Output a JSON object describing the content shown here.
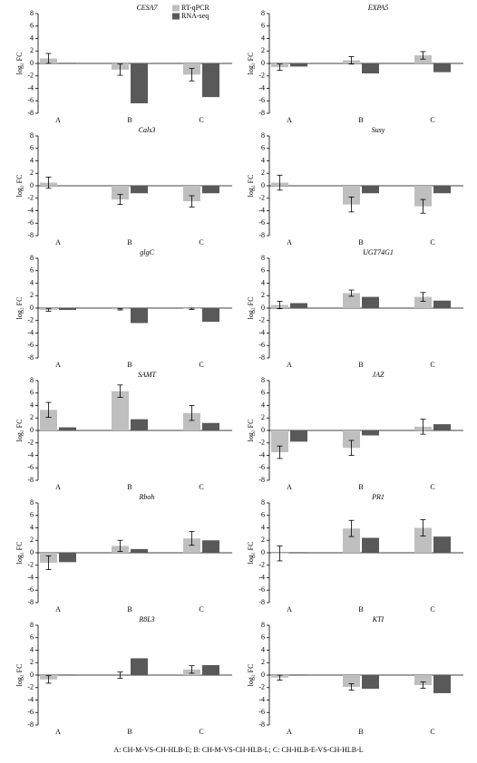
{
  "chart_data": [
    {
      "type": "bar",
      "title": "CESA7",
      "y_label": "log₂ FC",
      "categories": [
        "A",
        "B",
        "C"
      ],
      "ylim": [
        -8,
        8
      ],
      "yticks": [
        -8,
        -6,
        -4,
        -2,
        0,
        2,
        4,
        6,
        8
      ],
      "legend": true,
      "series": [
        {
          "name": "RT-qPCR",
          "color": "#bfbfbf",
          "values": [
            0.8,
            -1.0,
            -1.8
          ],
          "errors": [
            0.8,
            0.9,
            1.0
          ]
        },
        {
          "name": "RNA-seq",
          "color": "#595959",
          "values": [
            0.1,
            -6.4,
            -5.4
          ]
        }
      ]
    },
    {
      "type": "bar",
      "title": "EXPA5",
      "y_label": "log₂ FC",
      "categories": [
        "A",
        "B",
        "C"
      ],
      "ylim": [
        -8,
        8
      ],
      "yticks": [
        -8,
        -6,
        -4,
        -2,
        0,
        2,
        4,
        6,
        8
      ],
      "series": [
        {
          "color": "#bfbfbf",
          "values": [
            -0.6,
            0.5,
            1.3
          ],
          "errors": [
            0.5,
            0.6,
            0.6
          ]
        },
        {
          "color": "#595959",
          "values": [
            -0.5,
            -1.6,
            -1.4
          ]
        }
      ]
    },
    {
      "type": "bar",
      "title": "Cals3",
      "y_label": "log₂ FC",
      "categories": [
        "A",
        "B",
        "C"
      ],
      "ylim": [
        -8,
        8
      ],
      "yticks": [
        -8,
        -6,
        -4,
        -2,
        0,
        2,
        4,
        6,
        8
      ],
      "series": [
        {
          "color": "#bfbfbf",
          "values": [
            0.5,
            -2.2,
            -2.5
          ],
          "errors": [
            0.9,
            0.8,
            0.9
          ]
        },
        {
          "color": "#595959",
          "values": [
            0.0,
            -1.2,
            -1.2
          ]
        }
      ]
    },
    {
      "type": "bar",
      "title": "Susy",
      "y_label": "log₂ FC",
      "categories": [
        "A",
        "B",
        "C"
      ],
      "ylim": [
        -8,
        8
      ],
      "yticks": [
        -8,
        -6,
        -4,
        -2,
        0,
        2,
        4,
        6,
        8
      ],
      "series": [
        {
          "color": "#bfbfbf",
          "values": [
            0.5,
            -3.0,
            -3.3
          ],
          "errors": [
            1.2,
            1.2,
            1.1
          ]
        },
        {
          "color": "#595959",
          "values": [
            0.0,
            -1.2,
            -1.2
          ]
        }
      ]
    },
    {
      "type": "bar",
      "title": "glgC",
      "y_label": "log₂ FC",
      "categories": [
        "A",
        "B",
        "C"
      ],
      "ylim": [
        -8,
        8
      ],
      "yticks": [
        -8,
        -6,
        -4,
        -2,
        0,
        2,
        4,
        6,
        8
      ],
      "series": [
        {
          "color": "#bfbfbf",
          "values": [
            -0.3,
            -0.2,
            -0.1
          ],
          "errors": [
            0.2,
            0.1,
            0.1
          ]
        },
        {
          "color": "#595959",
          "values": [
            -0.3,
            -2.4,
            -2.2
          ]
        }
      ]
    },
    {
      "type": "bar",
      "title": "UGT74G1",
      "y_label": "log₂ FC",
      "categories": [
        "A",
        "B",
        "C"
      ],
      "ylim": [
        -8,
        8
      ],
      "yticks": [
        -8,
        -6,
        -4,
        -2,
        0,
        2,
        4,
        6,
        8
      ],
      "series": [
        {
          "color": "#bfbfbf",
          "values": [
            0.5,
            2.4,
            1.8
          ],
          "errors": [
            0.6,
            0.5,
            0.7
          ]
        },
        {
          "color": "#595959",
          "values": [
            0.8,
            1.8,
            1.2
          ]
        }
      ]
    },
    {
      "type": "bar",
      "title": "SAMT",
      "y_label": "log₂ FC",
      "categories": [
        "A",
        "B",
        "C"
      ],
      "ylim": [
        -8,
        8
      ],
      "yticks": [
        -8,
        -6,
        -4,
        -2,
        0,
        2,
        4,
        6,
        8
      ],
      "series": [
        {
          "color": "#bfbfbf",
          "values": [
            3.3,
            6.3,
            2.8
          ],
          "errors": [
            1.2,
            1.0,
            1.2
          ]
        },
        {
          "color": "#595959",
          "values": [
            0.5,
            1.8,
            1.2
          ]
        }
      ]
    },
    {
      "type": "bar",
      "title": "JAZ",
      "y_label": "log₂ FC",
      "categories": [
        "A",
        "B",
        "C"
      ],
      "ylim": [
        -8,
        8
      ],
      "yticks": [
        -8,
        -6,
        -4,
        -2,
        0,
        2,
        4,
        6,
        8
      ],
      "series": [
        {
          "color": "#bfbfbf",
          "values": [
            -3.5,
            -2.8,
            0.6
          ],
          "errors": [
            1.0,
            1.2,
            1.2
          ]
        },
        {
          "color": "#595959",
          "values": [
            -1.8,
            -0.8,
            1.0
          ]
        }
      ]
    },
    {
      "type": "bar",
      "title": "Rboh",
      "y_label": "log₂ FC",
      "categories": [
        "A",
        "B",
        "C"
      ],
      "ylim": [
        -8,
        8
      ],
      "yticks": [
        -8,
        -6,
        -4,
        -2,
        0,
        2,
        4,
        6,
        8
      ],
      "series": [
        {
          "color": "#bfbfbf",
          "values": [
            -1.6,
            1.1,
            2.3
          ],
          "errors": [
            1.1,
            0.9,
            1.1
          ]
        },
        {
          "color": "#595959",
          "values": [
            -1.5,
            0.6,
            2.0
          ]
        }
      ]
    },
    {
      "type": "bar",
      "title": "PR1",
      "y_label": "log₂ FC",
      "categories": [
        "A",
        "B",
        "C"
      ],
      "ylim": [
        -8,
        8
      ],
      "yticks": [
        -8,
        -6,
        -4,
        -2,
        0,
        2,
        4,
        6,
        8
      ],
      "series": [
        {
          "color": "#bfbfbf",
          "values": [
            -0.1,
            3.9,
            4.0
          ],
          "errors": [
            1.2,
            1.3,
            1.3
          ]
        },
        {
          "color": "#595959",
          "values": [
            0.1,
            2.4,
            2.6
          ]
        }
      ]
    },
    {
      "type": "bar",
      "title": "R8L3",
      "y_label": "log₂ FC",
      "categories": [
        "A",
        "B",
        "C"
      ],
      "ylim": [
        -8,
        8
      ],
      "yticks": [
        -8,
        -6,
        -4,
        -2,
        0,
        2,
        4,
        6,
        8
      ],
      "series": [
        {
          "color": "#bfbfbf",
          "values": [
            -0.7,
            0.0,
            0.9
          ],
          "errors": [
            0.6,
            0.5,
            0.6
          ]
        },
        {
          "color": "#595959",
          "values": [
            0.1,
            2.7,
            1.6
          ]
        }
      ]
    },
    {
      "type": "bar",
      "title": "KTI",
      "y_label": "log₂ FC",
      "categories": [
        "A",
        "B",
        "C"
      ],
      "ylim": [
        -8,
        8
      ],
      "yticks": [
        -8,
        -6,
        -4,
        -2,
        0,
        2,
        4,
        6,
        8
      ],
      "series": [
        {
          "color": "#bfbfbf",
          "values": [
            -0.4,
            -1.9,
            -1.6
          ],
          "errors": [
            0.4,
            0.5,
            0.5
          ]
        },
        {
          "color": "#595959",
          "values": [
            0.1,
            -2.2,
            -2.9
          ]
        }
      ]
    }
  ],
  "caption": "A: CH-M-VS-CH-HLB-E; B: CH-M-VS-CH-HLB-L; C: CH-HLB-E-VS-CH-HLB-L"
}
